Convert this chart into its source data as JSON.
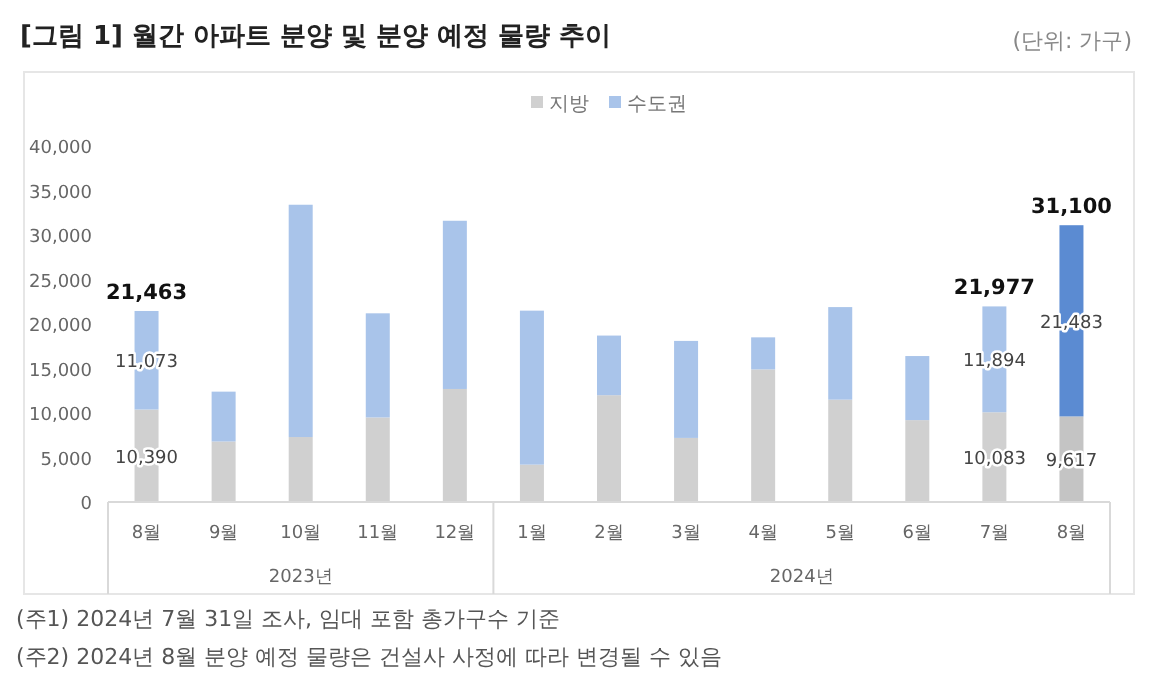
{
  "chart_data": {
    "type": "bar",
    "stacked": true,
    "title": "[그림 1] 월간 아파트 분양 및 분양 예정 물량 추이",
    "categories": [
      "8월",
      "9월",
      "10월",
      "11월",
      "12월",
      "1월",
      "2월",
      "3월",
      "4월",
      "5월",
      "6월",
      "7월",
      "8월"
    ],
    "series": [
      {
        "name": "지방",
        "color": "#d0d0d0",
        "colors": [
          "#d0d0d0",
          "#d0d0d0",
          "#d0d0d0",
          "#d0d0d0",
          "#d0d0d0",
          "#d0d0d0",
          "#d0d0d0",
          "#d0d0d0",
          "#d0d0d0",
          "#d0d0d0",
          "#d0d0d0",
          "#d0d0d0",
          "#c4c4c4"
        ],
        "values": [
          10390,
          6800,
          7300,
          9500,
          12700,
          4200,
          12000,
          7200,
          14900,
          11500,
          9200,
          10083,
          9617
        ],
        "value_labels": [
          "10,390",
          null,
          null,
          null,
          null,
          null,
          null,
          null,
          null,
          null,
          null,
          "10,083",
          "9,617"
        ]
      },
      {
        "name": "수도권",
        "color": "#a9c4ea",
        "colors": [
          "#a9c4ea",
          "#a9c4ea",
          "#a9c4ea",
          "#a9c4ea",
          "#a9c4ea",
          "#a9c4ea",
          "#a9c4ea",
          "#a9c4ea",
          "#a9c4ea",
          "#a9c4ea",
          "#a9c4ea",
          "#a9c4ea",
          "#5b8bd2"
        ],
        "values": [
          11073,
          5600,
          26100,
          11700,
          18900,
          17300,
          6700,
          10900,
          3600,
          10400,
          7200,
          11894,
          21483
        ],
        "value_labels": [
          "11,073",
          null,
          null,
          null,
          null,
          null,
          null,
          null,
          null,
          null,
          null,
          "11,894",
          "21,483"
        ]
      }
    ],
    "totals": [
      "21,463",
      null,
      null,
      null,
      null,
      null,
      null,
      null,
      null,
      null,
      null,
      "21,977",
      "31,100"
    ],
    "ylim": [
      0,
      40000
    ],
    "yticks": [
      {
        "value": 0,
        "label": "0"
      },
      {
        "value": 5000,
        "label": "5,000"
      },
      {
        "value": 10000,
        "label": "10,000"
      },
      {
        "value": 15000,
        "label": "15,000"
      },
      {
        "value": 20000,
        "label": "20,000"
      },
      {
        "value": 25000,
        "label": "25,000"
      },
      {
        "value": 30000,
        "label": "30,000"
      },
      {
        "value": 35000,
        "label": "35,000"
      },
      {
        "value": 40000,
        "label": "40,000"
      }
    ],
    "grid": false,
    "legend": "top",
    "annotations": [
      "(단위: 가구)",
      "2023년",
      "2024년",
      "(주1) 2024년 7월 31일 조사, 임대 포함 총가구수 기준",
      "(주2) 2024년 8월 분양 예정 물량은 건설사 사정에 따라 변경될 수 있음"
    ]
  }
}
